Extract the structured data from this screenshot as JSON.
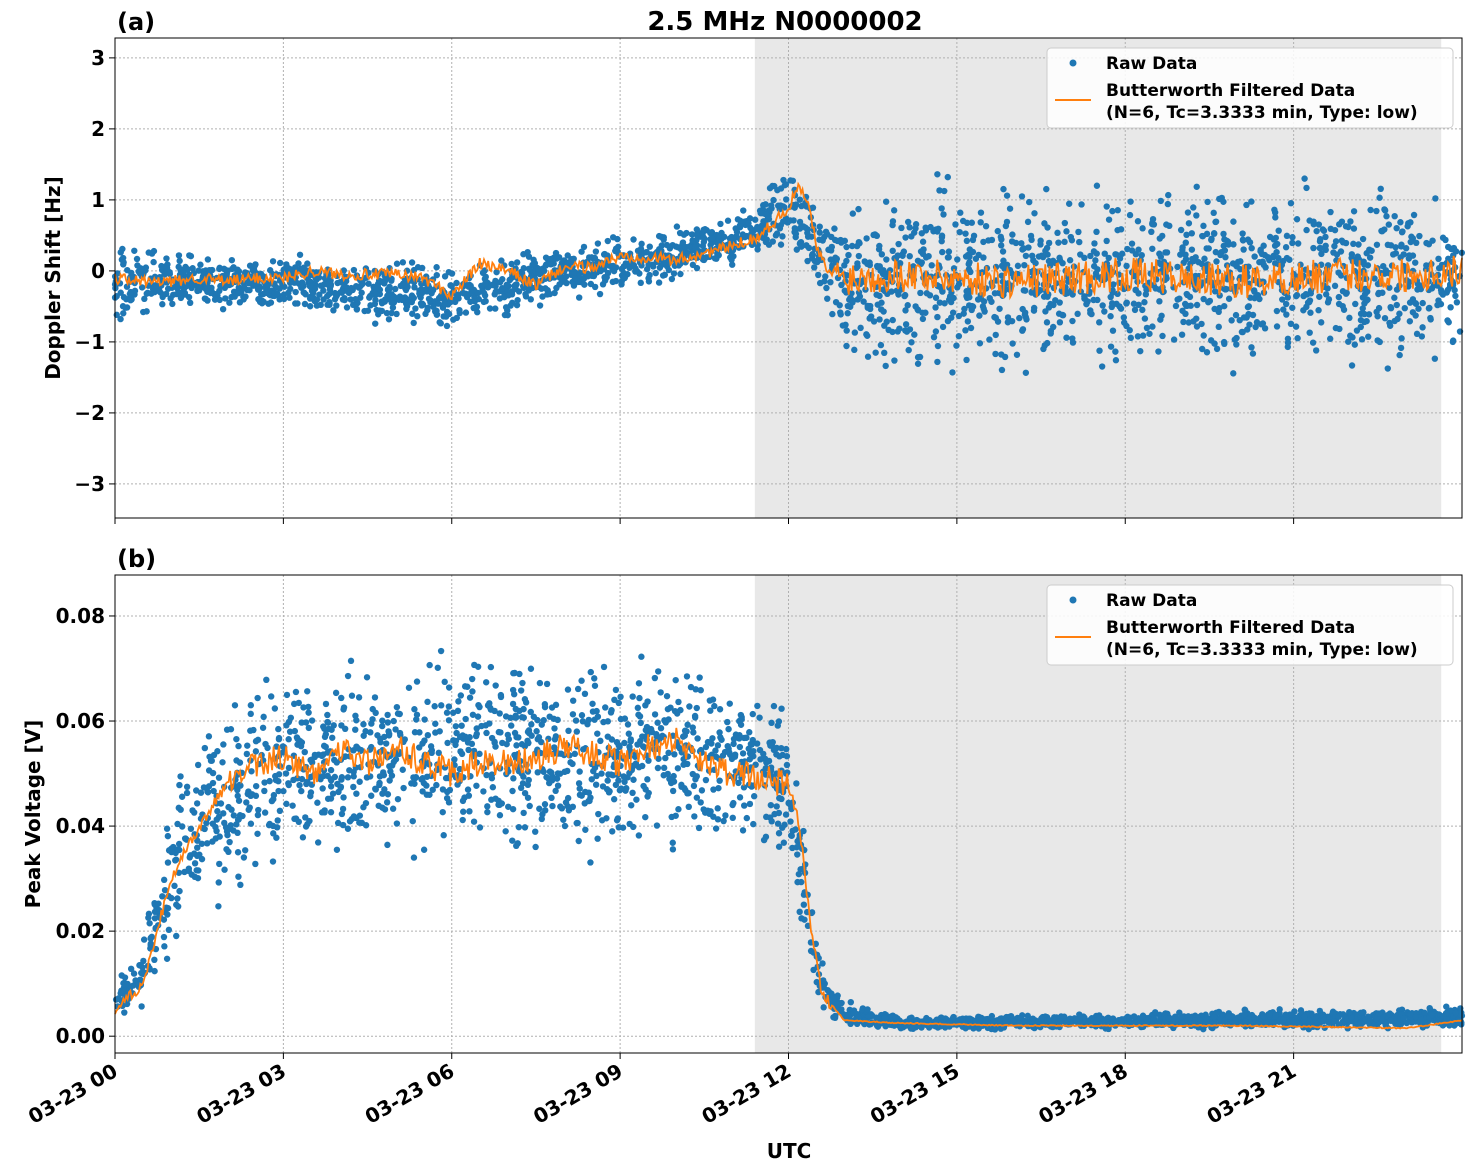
{
  "chart_data": [
    {
      "type": "scatter+line",
      "panel_label": "(a)",
      "title": "2.5 MHz N0000002",
      "ylabel": "Doppler Shift [Hz]",
      "xlabel": "",
      "xlim_hours": [
        0,
        24
      ],
      "ylim": [
        -3.48,
        3.28
      ],
      "yticks": [
        3,
        2,
        1,
        0,
        -1,
        -2,
        -3
      ],
      "ytick_labels": [
        "3",
        "2",
        "1",
        "0",
        "−1",
        "−2",
        "−3"
      ],
      "shaded_hours": [
        11.4,
        23.63
      ],
      "legend": {
        "placement": "top-right",
        "entries": [
          "Raw Data",
          "Butterworth Filtered Data",
          "(N=6, Tc=3.3333 min, Type: low)"
        ]
      },
      "filtered": {
        "x": [
          0,
          0.5,
          1,
          1.5,
          2,
          2.5,
          3,
          3.5,
          4,
          4.5,
          5,
          5.5,
          6,
          6.5,
          7,
          7.5,
          8,
          8.5,
          9,
          9.5,
          10,
          10.5,
          11,
          11.5,
          12,
          12.2,
          12.4,
          12.5,
          12.7,
          13,
          14,
          15,
          16,
          17,
          18,
          19,
          20,
          21,
          22,
          23,
          24
        ],
        "y": [
          -0.1,
          -0.15,
          -0.15,
          -0.1,
          -0.15,
          -0.1,
          -0.1,
          0.0,
          -0.05,
          -0.05,
          -0.05,
          -0.1,
          -0.35,
          0.1,
          0.0,
          -0.2,
          0.05,
          0.05,
          0.2,
          0.2,
          0.15,
          0.25,
          0.35,
          0.5,
          0.9,
          1.2,
          0.8,
          0.3,
          0.0,
          -0.1,
          -0.05,
          -0.1,
          -0.15,
          -0.1,
          -0.05,
          -0.1,
          -0.15,
          -0.1,
          -0.05,
          -0.05,
          0.0
        ]
      },
      "raw_envelope": {
        "x": [
          0,
          1,
          3,
          6,
          8,
          10,
          11,
          12,
          12.5,
          13,
          14,
          16,
          18,
          20,
          22,
          24
        ],
        "low": [
          -0.9,
          -0.6,
          -0.6,
          -1.0,
          -0.5,
          -0.2,
          0.0,
          0.3,
          -0.5,
          -1.5,
          -1.7,
          -1.7,
          -1.7,
          -1.7,
          -1.6,
          -1.3
        ],
        "high": [
          0.6,
          0.3,
          0.3,
          0.2,
          0.4,
          0.7,
          0.8,
          1.6,
          1.0,
          1.0,
          1.5,
          1.5,
          1.5,
          1.5,
          1.5,
          1.3
        ]
      }
    },
    {
      "type": "scatter+line",
      "panel_label": "(b)",
      "ylabel": "Peak Voltage [V]",
      "xlabel": "UTC",
      "xlim_hours": [
        0,
        24
      ],
      "ylim": [
        -0.0032,
        0.0878
      ],
      "yticks": [
        0.08,
        0.06,
        0.04,
        0.02,
        0.0
      ],
      "ytick_labels": [
        "0.08",
        "0.06",
        "0.04",
        "0.02",
        "0.00"
      ],
      "xticks_hours": [
        0,
        3,
        6,
        9,
        12,
        15,
        18,
        21
      ],
      "xtick_labels": [
        "03-23 00",
        "03-23 03",
        "03-23 06",
        "03-23 09",
        "03-23 12",
        "03-23 15",
        "03-23 18",
        "03-23 21"
      ],
      "shaded_hours": [
        11.4,
        23.63
      ],
      "legend": {
        "placement": "top-right",
        "entries": [
          "Raw Data",
          "Butterworth Filtered Data",
          "(N=6, Tc=3.3333 min, Type: low)"
        ]
      },
      "filtered": {
        "x": [
          0,
          0.5,
          1,
          1.5,
          2,
          2.5,
          3,
          3.5,
          4,
          4.5,
          5,
          5.5,
          6,
          6.5,
          7,
          7.5,
          8,
          8.5,
          9,
          9.5,
          10,
          10.5,
          11,
          11.5,
          12,
          12.2,
          12.4,
          12.6,
          13,
          14,
          16,
          18,
          20,
          22,
          23,
          24
        ],
        "y": [
          0.005,
          0.01,
          0.03,
          0.04,
          0.048,
          0.052,
          0.053,
          0.05,
          0.055,
          0.052,
          0.055,
          0.052,
          0.05,
          0.052,
          0.052,
          0.053,
          0.055,
          0.054,
          0.052,
          0.055,
          0.056,
          0.052,
          0.05,
          0.049,
          0.048,
          0.04,
          0.02,
          0.008,
          0.003,
          0.0025,
          0.002,
          0.002,
          0.002,
          0.0017,
          0.0015,
          0.003
        ]
      },
      "raw_envelope": {
        "x": [
          0,
          0.5,
          1,
          1.5,
          2,
          3,
          5,
          8,
          10,
          11.5,
          12,
          12.3,
          12.6,
          13,
          14,
          24
        ],
        "low": [
          0.003,
          0.004,
          0.015,
          0.02,
          0.022,
          0.028,
          0.03,
          0.03,
          0.033,
          0.035,
          0.03,
          0.015,
          0.004,
          0.001,
          0.001,
          0.001
        ],
        "high": [
          0.011,
          0.02,
          0.05,
          0.062,
          0.068,
          0.072,
          0.076,
          0.078,
          0.075,
          0.07,
          0.065,
          0.04,
          0.015,
          0.007,
          0.004,
          0.006
        ]
      }
    }
  ],
  "colors": {
    "raw": "#1f77b4",
    "filtered": "#ff7f0e",
    "shade": "#e8e8e8"
  }
}
